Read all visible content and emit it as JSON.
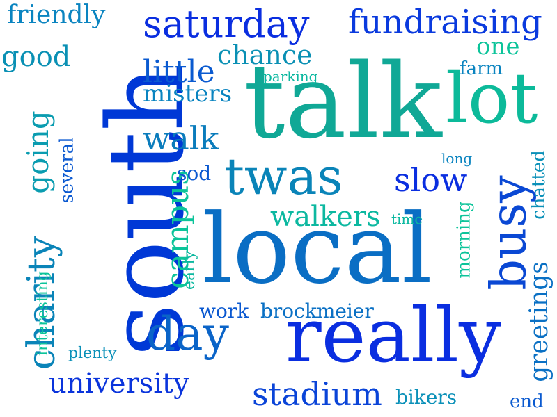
{
  "words": [
    {
      "text": "south",
      "color": "#0038d6"
    },
    {
      "text": "local",
      "color": "#0a6ec4"
    },
    {
      "text": "talk",
      "color": "#10a896"
    },
    {
      "text": "really",
      "color": "#0a2ee0"
    },
    {
      "text": "lot",
      "color": "#0cba9a"
    },
    {
      "text": "busy",
      "color": "#0a48d4"
    },
    {
      "text": "twas",
      "color": "#0a84b8"
    },
    {
      "text": "day",
      "color": "#0a64c8"
    },
    {
      "text": "saturday",
      "color": "#0a2ee0"
    },
    {
      "text": "fundraising",
      "color": "#0a3ade"
    },
    {
      "text": "charity",
      "color": "#0a84b8"
    },
    {
      "text": "university",
      "color": "#0a34dc"
    },
    {
      "text": "stadium",
      "color": "#0a44d8"
    },
    {
      "text": "walk",
      "color": "#0a7cbc"
    },
    {
      "text": "campus",
      "color": "#0cc49a"
    },
    {
      "text": "slow",
      "color": "#0a2ee0"
    },
    {
      "text": "little",
      "color": "#0a5ad0"
    },
    {
      "text": "going",
      "color": "#0a9cb0"
    },
    {
      "text": "walkers",
      "color": "#0cb8a0"
    },
    {
      "text": "chance",
      "color": "#0a90b4"
    },
    {
      "text": "friendly",
      "color": "#0a84c0"
    },
    {
      "text": "good",
      "color": "#0a90b4"
    },
    {
      "text": "misters",
      "color": "#0a84c0"
    },
    {
      "text": "greetings",
      "color": "#0a70c4"
    },
    {
      "text": "one",
      "color": "#0cc49a"
    },
    {
      "text": "brockmeier",
      "color": "#0a70c4"
    },
    {
      "text": "work",
      "color": "#0a58d0"
    },
    {
      "text": "bikers",
      "color": "#0a90b8"
    },
    {
      "text": "chatted",
      "color": "#0a90b8"
    },
    {
      "text": "morning",
      "color": "#0cc49a"
    },
    {
      "text": "several",
      "color": "#0a58d0"
    },
    {
      "text": "sod",
      "color": "#0a58d0"
    },
    {
      "text": "farm",
      "color": "#0a84c0"
    },
    {
      "text": "end",
      "color": "#0a5ad0"
    },
    {
      "text": "interesting",
      "color": "#0cc49a"
    },
    {
      "text": "early",
      "color": "#0cb8a0"
    },
    {
      "text": "plenty",
      "color": "#0a90b8"
    },
    {
      "text": "parking",
      "color": "#0cb8a0"
    },
    {
      "text": "time",
      "color": "#0cb8a0"
    },
    {
      "text": "long",
      "color": "#0a84c0"
    }
  ]
}
